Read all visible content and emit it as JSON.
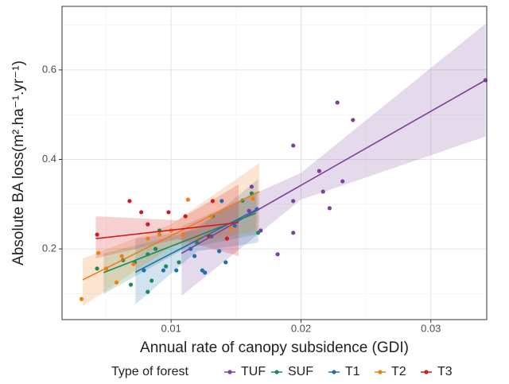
{
  "chart_data": {
    "type": "scatter",
    "x_label": "Annual rate of canopy subsidence (GDI)",
    "y_label": "Absolute BA loss(m².ha⁻¹.yr⁻¹)",
    "legend_title": "Type of forest",
    "legend_position": "bottom",
    "grid": true,
    "xlim": [
      0.0016,
      0.0343
    ],
    "ylim": [
      0.042,
      0.742
    ],
    "xticks": [
      0.01,
      0.02,
      0.03
    ],
    "yticks": [
      0.2,
      0.4,
      0.6
    ],
    "series": [
      {
        "name": "TUF",
        "color": "#7b3f9e",
        "x": [
          0.0342,
          0.024,
          0.0228,
          0.0194,
          0.0214,
          0.0217,
          0.0232,
          0.0222,
          0.0194,
          0.0194,
          0.0182,
          0.0169,
          0.0162,
          0.016
        ],
        "values": [
          0.577,
          0.488,
          0.527,
          0.431,
          0.374,
          0.328,
          0.351,
          0.291,
          0.307,
          0.236,
          0.188,
          0.241,
          0.339,
          0.285
        ],
        "fit": {
          "x": [
            0.0108,
            0.0342
          ],
          "y": [
            0.19,
            0.577
          ]
        },
        "band": {
          "x": [
            0.0108,
            0.02,
            0.0342
          ],
          "lower": [
            0.095,
            0.31,
            0.451
          ],
          "upper": [
            0.25,
            0.37,
            0.703
          ]
        }
      },
      {
        "name": "SUF",
        "color": "#1b8a5a",
        "x": [
          0.0043,
          0.0063,
          0.0072,
          0.0082,
          0.0085,
          0.0088,
          0.0091,
          0.0096,
          0.0106,
          0.012,
          0.0132,
          0.0155,
          0.0162,
          0.0167,
          0.0082,
          0.0069
        ],
        "values": [
          0.156,
          0.175,
          0.17,
          0.188,
          0.129,
          0.2,
          0.241,
          0.161,
          0.17,
          0.214,
          0.273,
          0.308,
          0.324,
          0.236,
          0.104,
          0.12
        ],
        "fit": {
          "x": [
            0.0048,
            0.01655
          ],
          "y": [
            0.147,
            0.28
          ]
        },
        "band": {
          "x": [
            0.0048,
            0.011,
            0.01655
          ],
          "lower": [
            0.099,
            0.2,
            0.232
          ],
          "upper": [
            0.19,
            0.235,
            0.33
          ]
        }
      },
      {
        "name": "T1",
        "color": "#1f6fb0",
        "x": [
          0.0079,
          0.0094,
          0.0104,
          0.0115,
          0.0124,
          0.0126,
          0.0131,
          0.0139,
          0.0142,
          0.0149,
          0.0166,
          0.0137,
          0.0118
        ],
        "values": [
          0.152,
          0.152,
          0.152,
          0.2,
          0.152,
          0.147,
          0.228,
          0.307,
          0.17,
          0.252,
          0.289,
          0.195,
          0.184
        ],
        "fit": {
          "x": [
            0.00725,
            0.0167
          ],
          "y": [
            0.148,
            0.29
          ]
        },
        "band": {
          "x": [
            0.00725,
            0.012,
            0.0167
          ],
          "lower": [
            0.076,
            0.195,
            0.214
          ],
          "upper": [
            0.223,
            0.243,
            0.356
          ]
        }
      },
      {
        "name": "T2",
        "color": "#f07f12",
        "x": [
          0.0031,
          0.0044,
          0.005,
          0.0058,
          0.0062,
          0.0071,
          0.0082,
          0.0091,
          0.01,
          0.0113,
          0.0121,
          0.0131,
          0.0146,
          0.0163,
          0.0109
        ],
        "values": [
          0.088,
          0.191,
          0.156,
          0.125,
          0.184,
          0.166,
          0.223,
          0.232,
          0.241,
          0.31,
          0.223,
          0.273,
          0.246,
          0.312,
          0.232
        ],
        "fit": {
          "x": [
            0.0032,
            0.0168
          ],
          "y": [
            0.131,
            0.328
          ]
        },
        "band": {
          "x": [
            0.0032,
            0.01,
            0.0168
          ],
          "lower": [
            0.072,
            0.205,
            0.241
          ],
          "upper": [
            0.179,
            0.255,
            0.392
          ]
        }
      },
      {
        "name": "T3",
        "color": "#d7191c",
        "x": [
          0.0043,
          0.0068,
          0.0082,
          0.0098,
          0.0111,
          0.0129,
          0.0132,
          0.0143,
          0.0077
        ],
        "values": [
          0.232,
          0.307,
          0.255,
          0.282,
          0.273,
          0.228,
          0.307,
          0.223,
          0.282
        ],
        "fit": {
          "x": [
            0.0042,
            0.0152
          ],
          "y": [
            0.223,
            0.259
          ]
        },
        "band": {
          "x": [
            0.0042,
            0.0105,
            0.0152
          ],
          "lower": [
            0.179,
            0.222,
            0.184
          ],
          "upper": [
            0.273,
            0.264,
            0.344
          ]
        }
      }
    ]
  }
}
